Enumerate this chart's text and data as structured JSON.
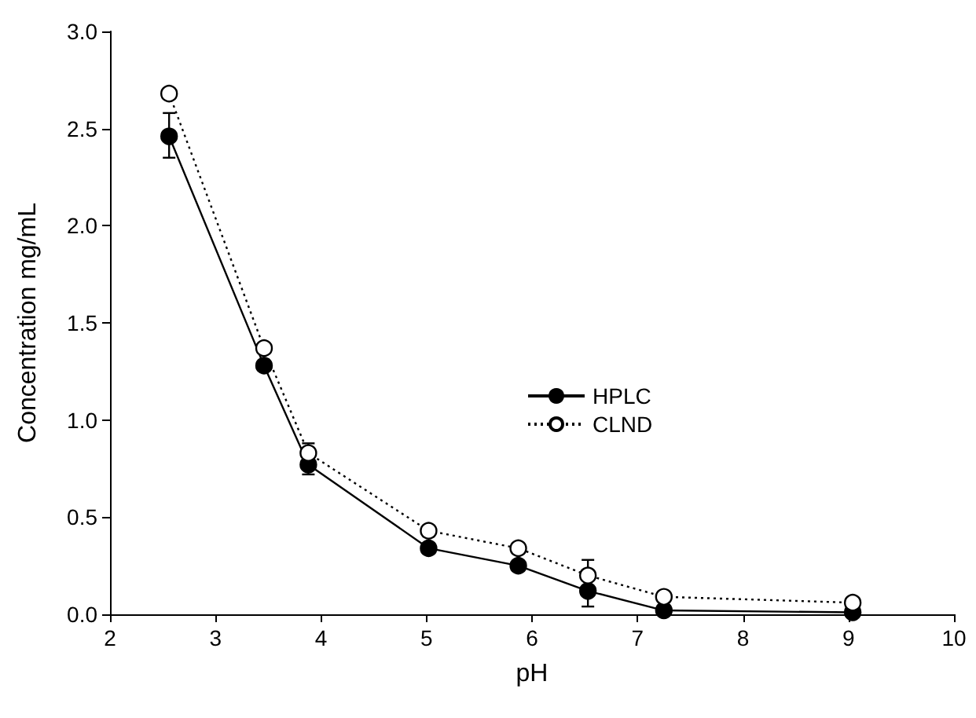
{
  "chart_data": {
    "type": "line",
    "xlabel": "pH",
    "ylabel": "Concentration mg/mL",
    "x": [
      2.56,
      3.46,
      3.88,
      5.02,
      5.87,
      6.53,
      7.25,
      9.04
    ],
    "series": [
      {
        "name": "HPLC",
        "color": "#000000",
        "line_style": "solid",
        "values": [
          2.46,
          1.28,
          0.77,
          0.34,
          0.25,
          0.12,
          0.02,
          0.01
        ],
        "errors": [
          [
            2.35,
            2.58
          ],
          null,
          [
            0.72,
            0.88
          ],
          null,
          null,
          [
            0.04,
            0.28
          ],
          null,
          null
        ]
      },
      {
        "name": "CLND",
        "color": "#000000",
        "line_style": "dotted",
        "values": [
          2.68,
          1.37,
          0.83,
          0.43,
          0.34,
          0.2,
          0.09,
          0.06
        ]
      }
    ],
    "xlim": [
      2,
      10
    ],
    "xticks": [
      2,
      3,
      4,
      5,
      6,
      7,
      8,
      9,
      10
    ],
    "ylim": [
      0,
      3
    ],
    "yticks": [
      {
        "value": 0,
        "label": "0.0"
      },
      {
        "value": 0.5,
        "label": "0.5"
      },
      {
        "value": 1,
        "label": "1.0"
      },
      {
        "value": 1.5,
        "label": "1.5"
      },
      {
        "value": 2,
        "label": "2.0"
      },
      {
        "value": 2.5,
        "label": "2.5"
      },
      {
        "value": 3,
        "label": "3.0"
      }
    ],
    "marker": "circle",
    "grid": false,
    "legend": "center"
  }
}
